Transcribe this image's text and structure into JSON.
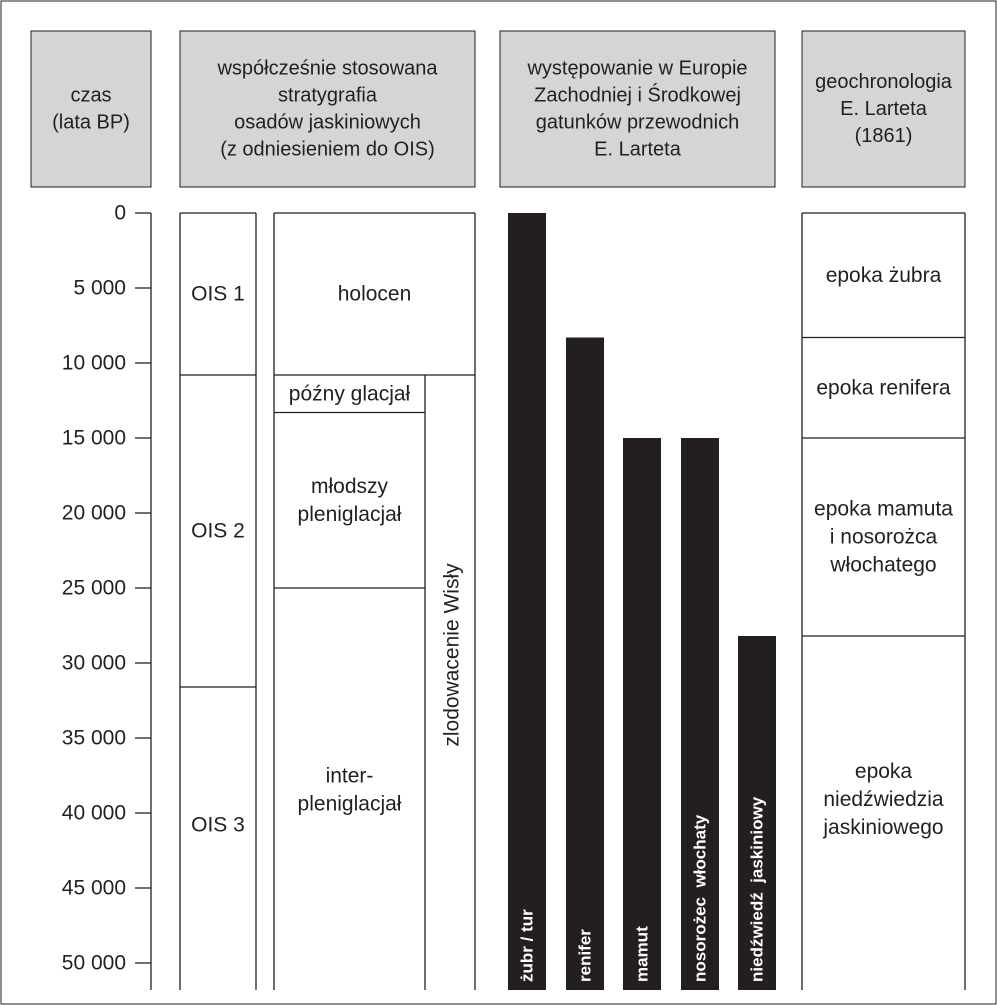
{
  "headers": {
    "time": [
      "czas",
      "(lata BP)"
    ],
    "stratigraphy": [
      "współcześnie stosowana",
      "stratygrafia",
      "osadów jaskiniowych",
      "(z odniesieniem do OIS)"
    ],
    "occurrence": [
      "występowanie w Europie",
      "Zachodniej i Środkowej",
      "gatunków przewodnich",
      "E. Larteta"
    ],
    "geochronology": [
      "geochronologia",
      "E. Larteta",
      "(1861)"
    ]
  },
  "axis": {
    "min": 0,
    "max": 50000,
    "tick_values": [
      0,
      5000,
      10000,
      15000,
      20000,
      25000,
      30000,
      35000,
      40000,
      45000,
      50000
    ],
    "tick_labels": [
      "0",
      "5 000",
      "10 000",
      "15 000",
      "20 000",
      "25 000",
      "30 000",
      "35 000",
      "40 000",
      "45 000",
      "50 000"
    ]
  },
  "ois": [
    {
      "label": "OIS 1",
      "from": 0,
      "to": 10800
    },
    {
      "label": "OIS 2",
      "from": 10800,
      "to": 31600
    },
    {
      "label": "OIS 3",
      "from": 31600,
      "to": 50000
    }
  ],
  "stratigraphy": [
    {
      "label": [
        "holocen"
      ],
      "from": 0,
      "to": 10800
    },
    {
      "label": [
        "późny glacjał"
      ],
      "from": 10800,
      "to": 13300
    },
    {
      "label": [
        "młodszy",
        "pleniglacjał"
      ],
      "from": 13300,
      "to": 25000
    },
    {
      "label": [
        "inter-",
        "pleniglacjał"
      ],
      "from": 25000,
      "to": 50000
    }
  ],
  "glaciation": {
    "label": "zlodowacenie Wisły",
    "from": 10800,
    "to": 50000
  },
  "species": [
    {
      "label": "żubr / tur",
      "from": 0,
      "to": 50000
    },
    {
      "label": "renifer",
      "from": 8300,
      "to": 50000
    },
    {
      "label": "mamut",
      "from": 15000,
      "to": 50000
    },
    {
      "label": "nosorożec  włochaty",
      "from": 15000,
      "to": 50000
    },
    {
      "label": "niedźwiedź  jaskiniowy",
      "from": 28200,
      "to": 50000
    }
  ],
  "epochs": [
    {
      "label": [
        "epoka żubra"
      ],
      "from": 0,
      "to": 8300
    },
    {
      "label": [
        "epoka renifera"
      ],
      "from": 8300,
      "to": 15000
    },
    {
      "label": [
        "epoka mamuta",
        "i nosorożca",
        "włochatego"
      ],
      "from": 15000,
      "to": 28200
    },
    {
      "label": [
        "epoka",
        "niedźwiedzia",
        "jaskiniowego"
      ],
      "from": 28200,
      "to": 50000
    }
  ],
  "colors": {
    "bar": "#231f20",
    "header_fill": "#d5d5d5",
    "line": "#231f20"
  }
}
